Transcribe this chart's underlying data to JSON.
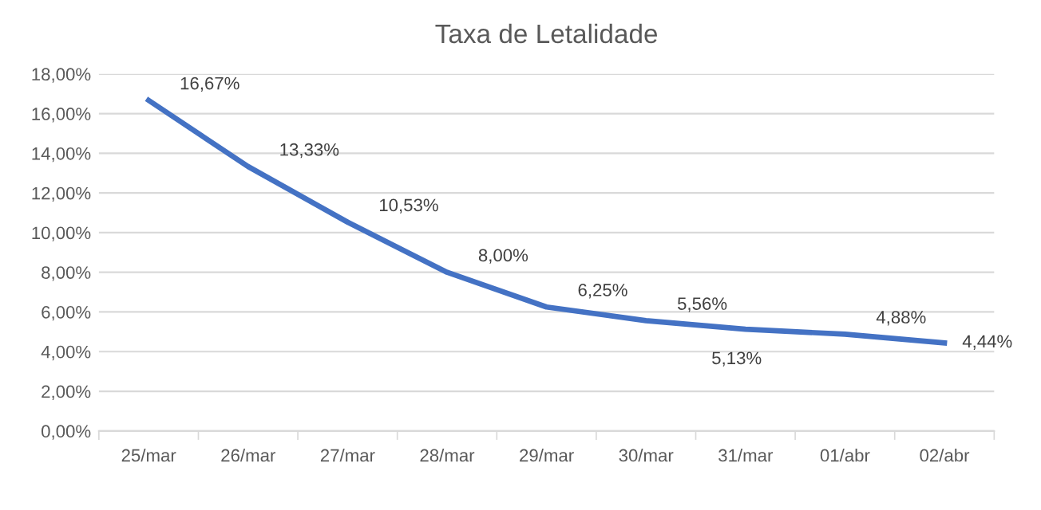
{
  "chart_data": {
    "type": "line",
    "title": "Taxa de Letalidade",
    "categories": [
      "25/mar",
      "26/mar",
      "27/mar",
      "28/mar",
      "29/mar",
      "30/mar",
      "31/mar",
      "01/abr",
      "02/abr"
    ],
    "series": [
      {
        "color": "#4472c4",
        "values": [
          16.67,
          13.33,
          10.53,
          8.0,
          6.25,
          5.56,
          5.13,
          4.88,
          4.44
        ],
        "value_labels": [
          "16,67%",
          "13,33%",
          "10,53%",
          "8,00%",
          "6,25%",
          "5,56%",
          "5,13%",
          "4,88%",
          "4,44%"
        ]
      }
    ],
    "ylim": [
      0,
      18
    ],
    "yticks": [
      {
        "value": 0,
        "label": "0,00%"
      },
      {
        "value": 2,
        "label": "2,00%"
      },
      {
        "value": 4,
        "label": "4,00%"
      },
      {
        "value": 6,
        "label": "6,00%"
      },
      {
        "value": 8,
        "label": "8,00%"
      },
      {
        "value": 10,
        "label": "10,00%"
      },
      {
        "value": 12,
        "label": "12,00%"
      },
      {
        "value": 14,
        "label": "14,00%"
      },
      {
        "value": 16,
        "label": "16,00%"
      },
      {
        "value": 18,
        "label": "18,00%"
      }
    ],
    "grid": "y",
    "marker": "none",
    "line_style": "solid"
  }
}
